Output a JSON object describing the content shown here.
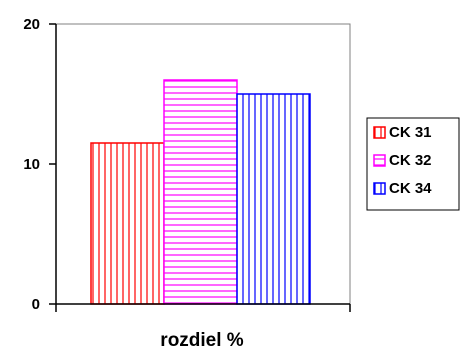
{
  "chart_data": {
    "type": "bar",
    "title": "",
    "xlabel": "rozdiel %",
    "ylabel": "",
    "categories": [
      "rozdiel %"
    ],
    "ylim": [
      0,
      20
    ],
    "yticks": [
      0,
      10,
      20
    ],
    "grid": false,
    "legend_position": "right",
    "series": [
      {
        "name": "CK 31",
        "values": [
          11.5
        ],
        "color": "#ff0000",
        "pattern": "vertical-lines"
      },
      {
        "name": "CK 32",
        "values": [
          16.0
        ],
        "color": "#ff00ff",
        "pattern": "horizontal-lines"
      },
      {
        "name": "CK 34",
        "values": [
          15.0
        ],
        "color": "#0000ff",
        "pattern": "vertical-lines"
      }
    ]
  }
}
